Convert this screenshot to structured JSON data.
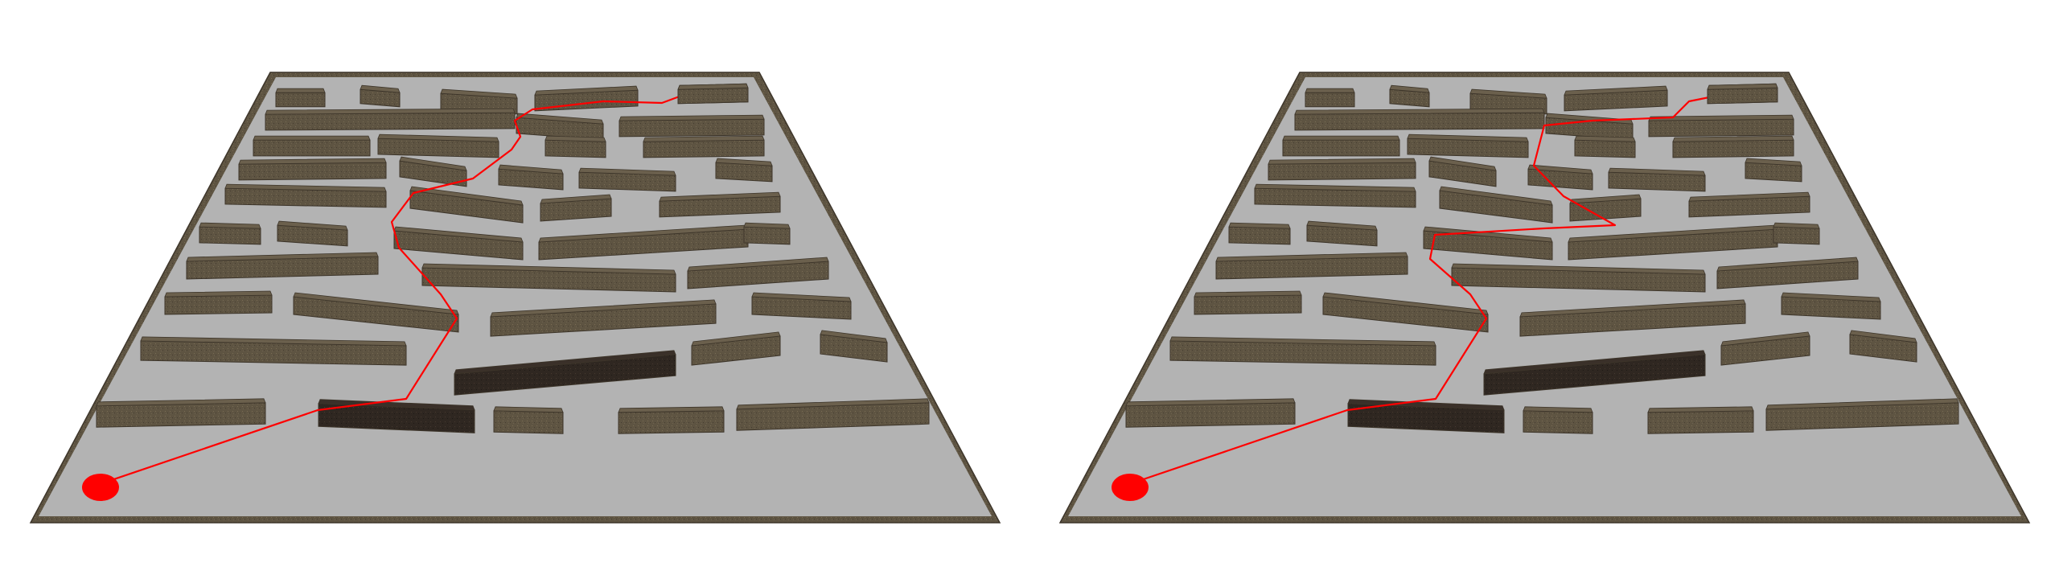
{
  "scene": {
    "description_hidden": "",
    "background": "#ffffff",
    "floor_color": "#b3b3b3",
    "wall_color": "#5e5442",
    "wall_dark_color": "#2f2721",
    "start_marker_color": "#ff0000",
    "goal_marker_color": "#1a1acc",
    "path_color": "#ff0000"
  },
  "views": [
    {
      "name": "left-maze-view",
      "path_variant": "direct"
    },
    {
      "name": "right-maze-view",
      "path_variant": "detour"
    }
  ]
}
